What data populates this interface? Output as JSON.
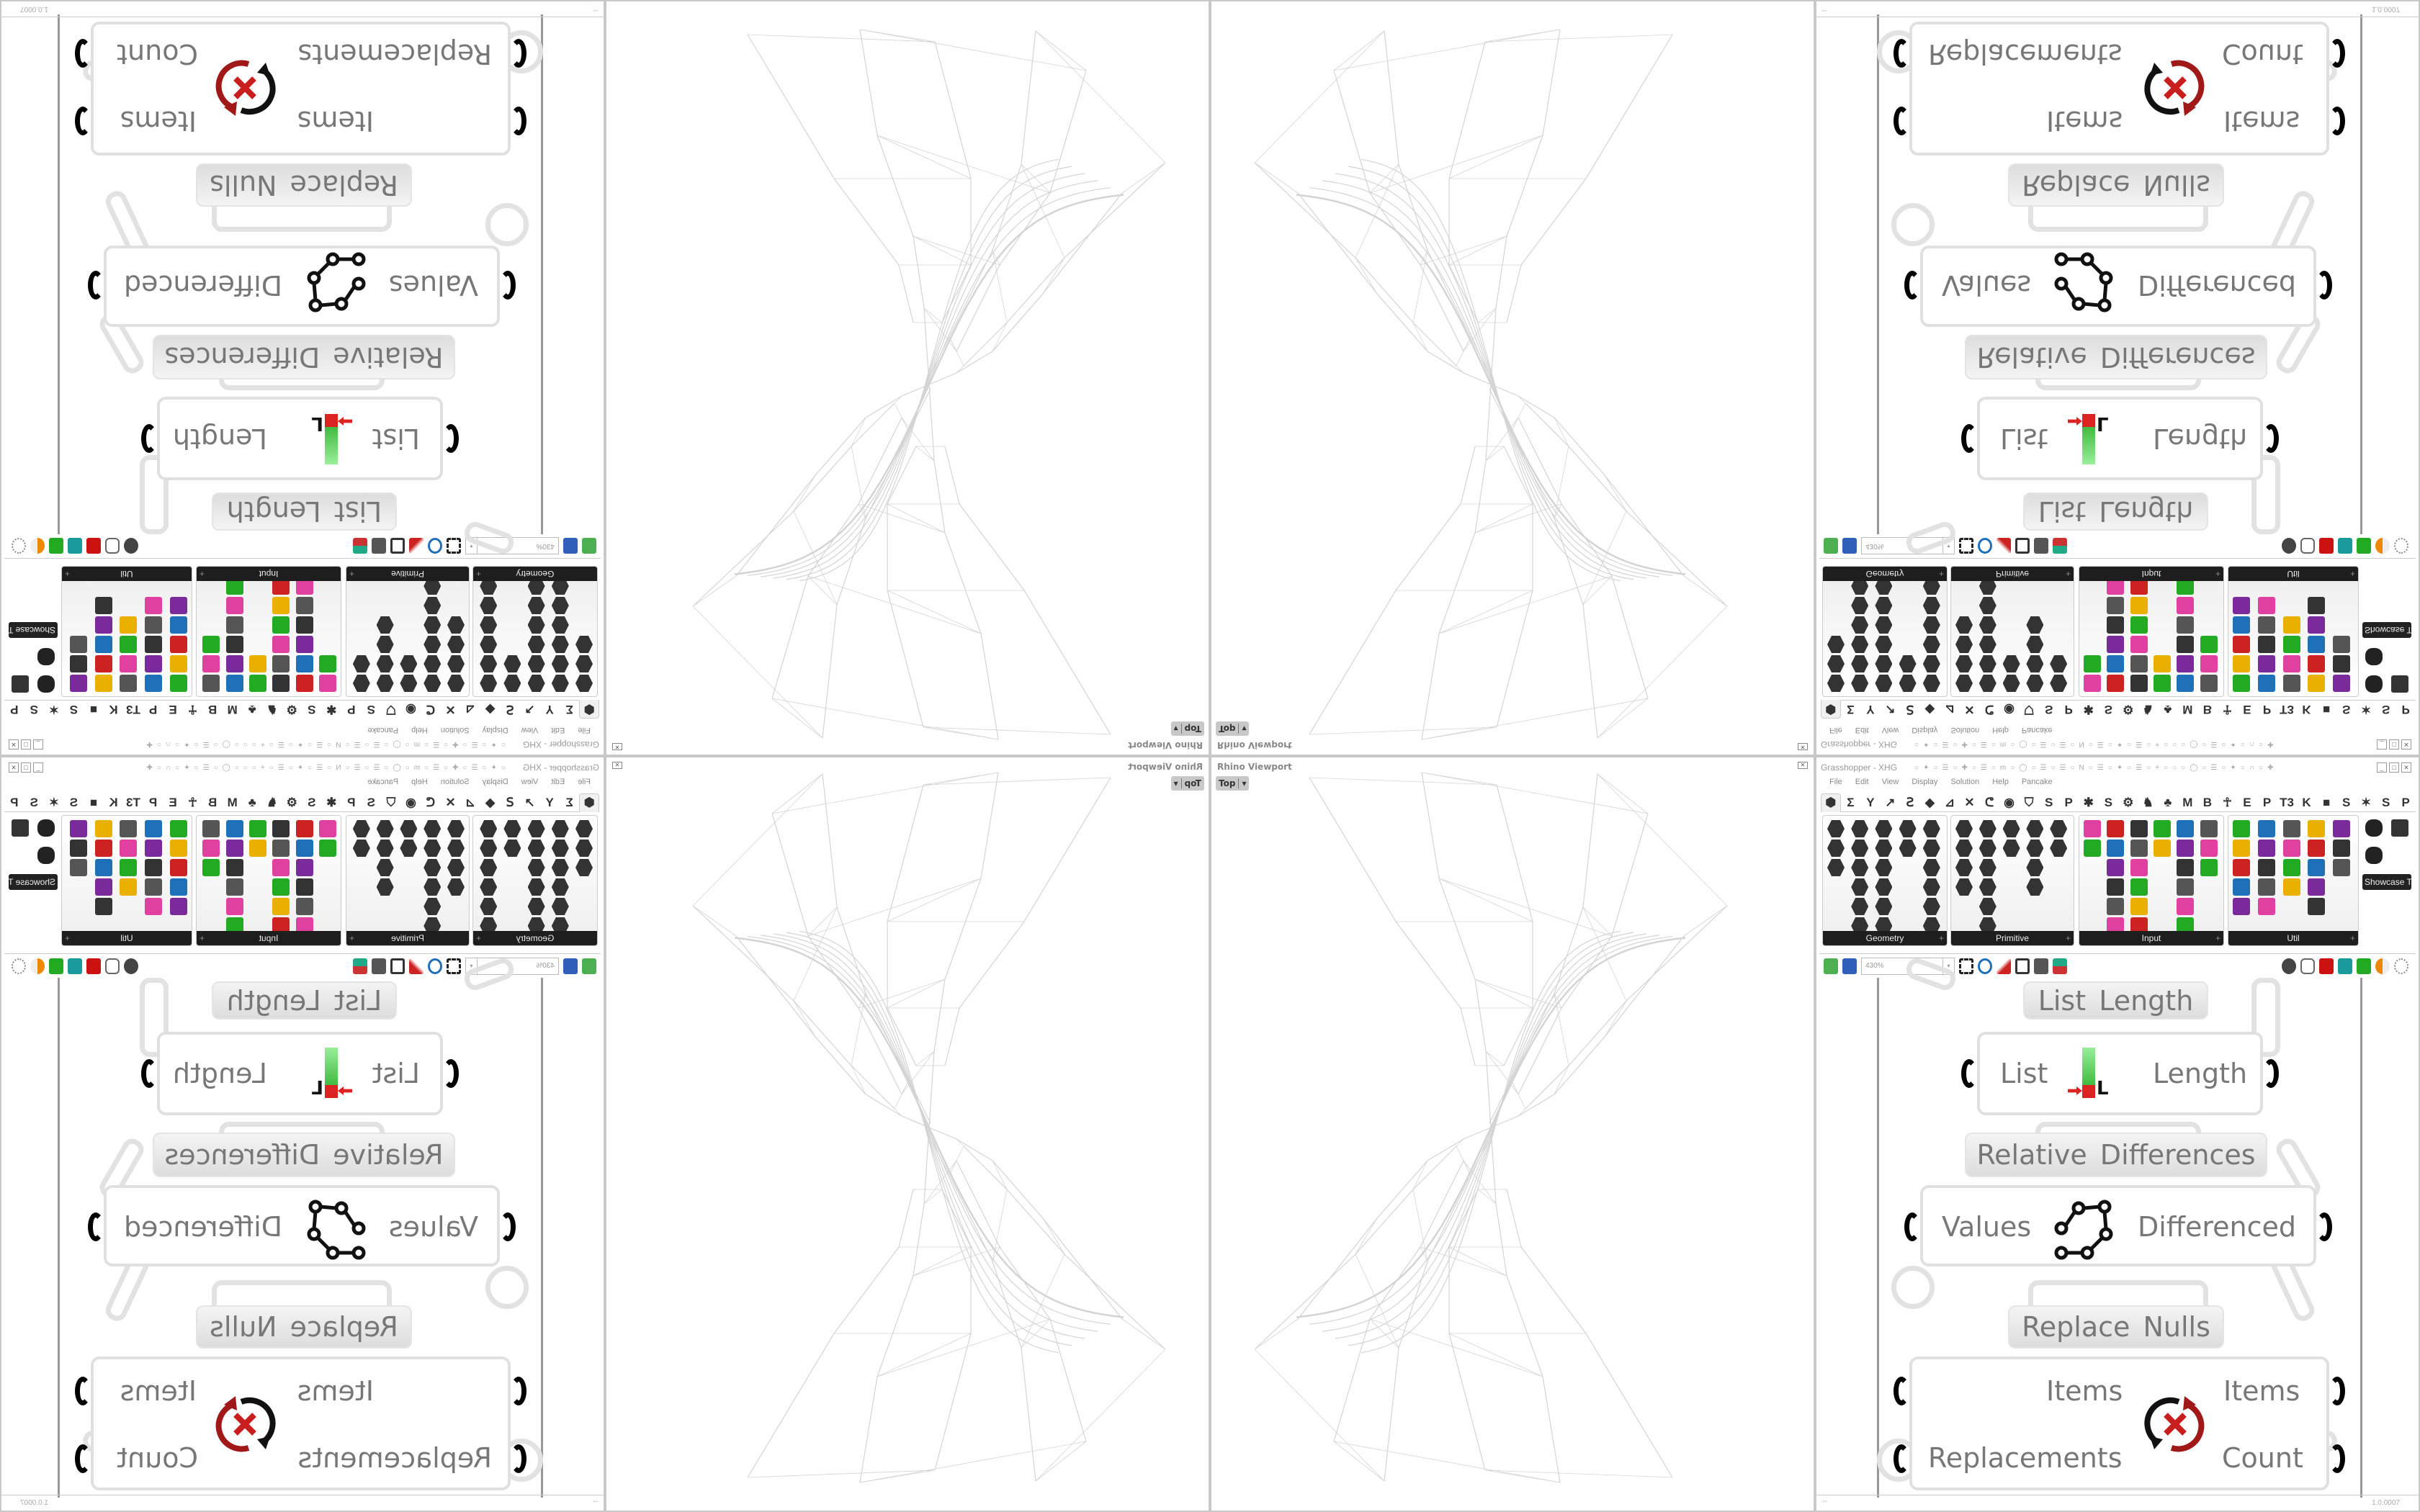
{
  "viewport": {
    "title": "Rhino Viewport",
    "view": "Top"
  },
  "grasshopper": {
    "title": "Grasshopper - XHG",
    "menu": [
      "File",
      "Edit",
      "View",
      "Display",
      "Solution",
      "Help",
      "Pancake"
    ],
    "tabs": [
      "⬢",
      "Σ",
      "Y",
      "↗",
      "Ꙅ",
      "◆",
      "⊿",
      "✕",
      "ᕦ",
      "◉",
      "⛉",
      "S",
      "P",
      "✱",
      "S",
      "⚙",
      "♞",
      "♣",
      "M",
      "B",
      "☥",
      "E",
      "P",
      "T3",
      "K",
      "■",
      "S",
      "✶",
      "S",
      "P"
    ],
    "panels": [
      "Geometry",
      "Primitive",
      "Input",
      "Util"
    ],
    "showcase_label": "Showcase T...",
    "zoom": "430%",
    "version": "1.0.0007",
    "status_left": "--"
  },
  "components": {
    "list_length": {
      "label": "List Length",
      "input": "List",
      "output": "Length"
    },
    "relative_differences": {
      "label": "Relative Differences",
      "input": "Values",
      "output": "Differenced"
    },
    "replace_nulls": {
      "label": "Replace Nulls",
      "inputs": [
        "Items",
        "Replacements"
      ],
      "outputs": [
        "Items",
        "Count"
      ]
    }
  },
  "colors": {
    "accent_red": "#c81e1e",
    "accent_green": "#3ab53a",
    "wire_ghost": "#e2e2e2",
    "mesh_line": "#d4d4d4"
  }
}
